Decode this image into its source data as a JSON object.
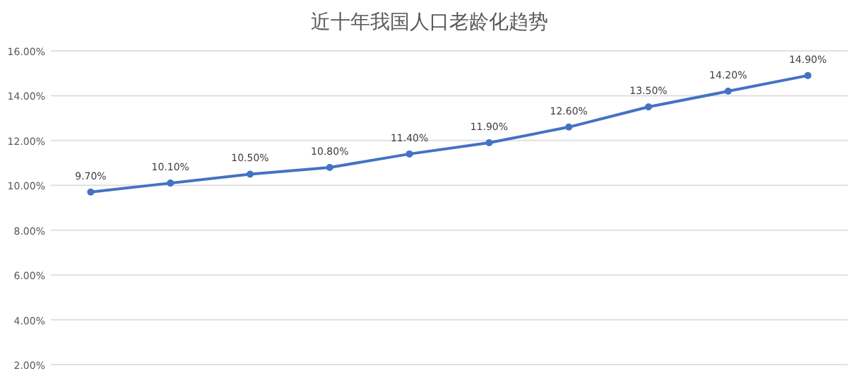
{
  "chart_data": {
    "type": "line",
    "title": "近十年我国人口老龄化趋势",
    "categories": [
      null,
      null,
      null,
      null,
      null,
      null,
      null,
      null,
      null,
      null
    ],
    "series": [
      {
        "color": "#4472c4",
        "values": [
          9.7,
          10.1,
          10.5,
          10.8,
          11.4,
          11.9,
          12.6,
          13.5,
          14.2,
          14.9
        ],
        "value_labels": [
          "9.70%",
          "10.10%",
          "10.50%",
          "10.80%",
          "11.40%",
          "11.90%",
          "12.60%",
          "13.50%",
          "14.20%",
          "14.90%"
        ]
      }
    ],
    "ylim": [
      2,
      16
    ],
    "yticks": [
      {
        "value": 2,
        "label": "2.00%"
      },
      {
        "value": 4,
        "label": "4.00%"
      },
      {
        "value": 6,
        "label": "6.00%"
      },
      {
        "value": 8,
        "label": "8.00%"
      },
      {
        "value": 10,
        "label": "10.00%"
      },
      {
        "value": 12,
        "label": "12.00%"
      },
      {
        "value": 14,
        "label": "14.00%"
      },
      {
        "value": 16,
        "label": "16.00%"
      }
    ],
    "grid": "y",
    "marker": "circle",
    "line_style": "solid"
  }
}
